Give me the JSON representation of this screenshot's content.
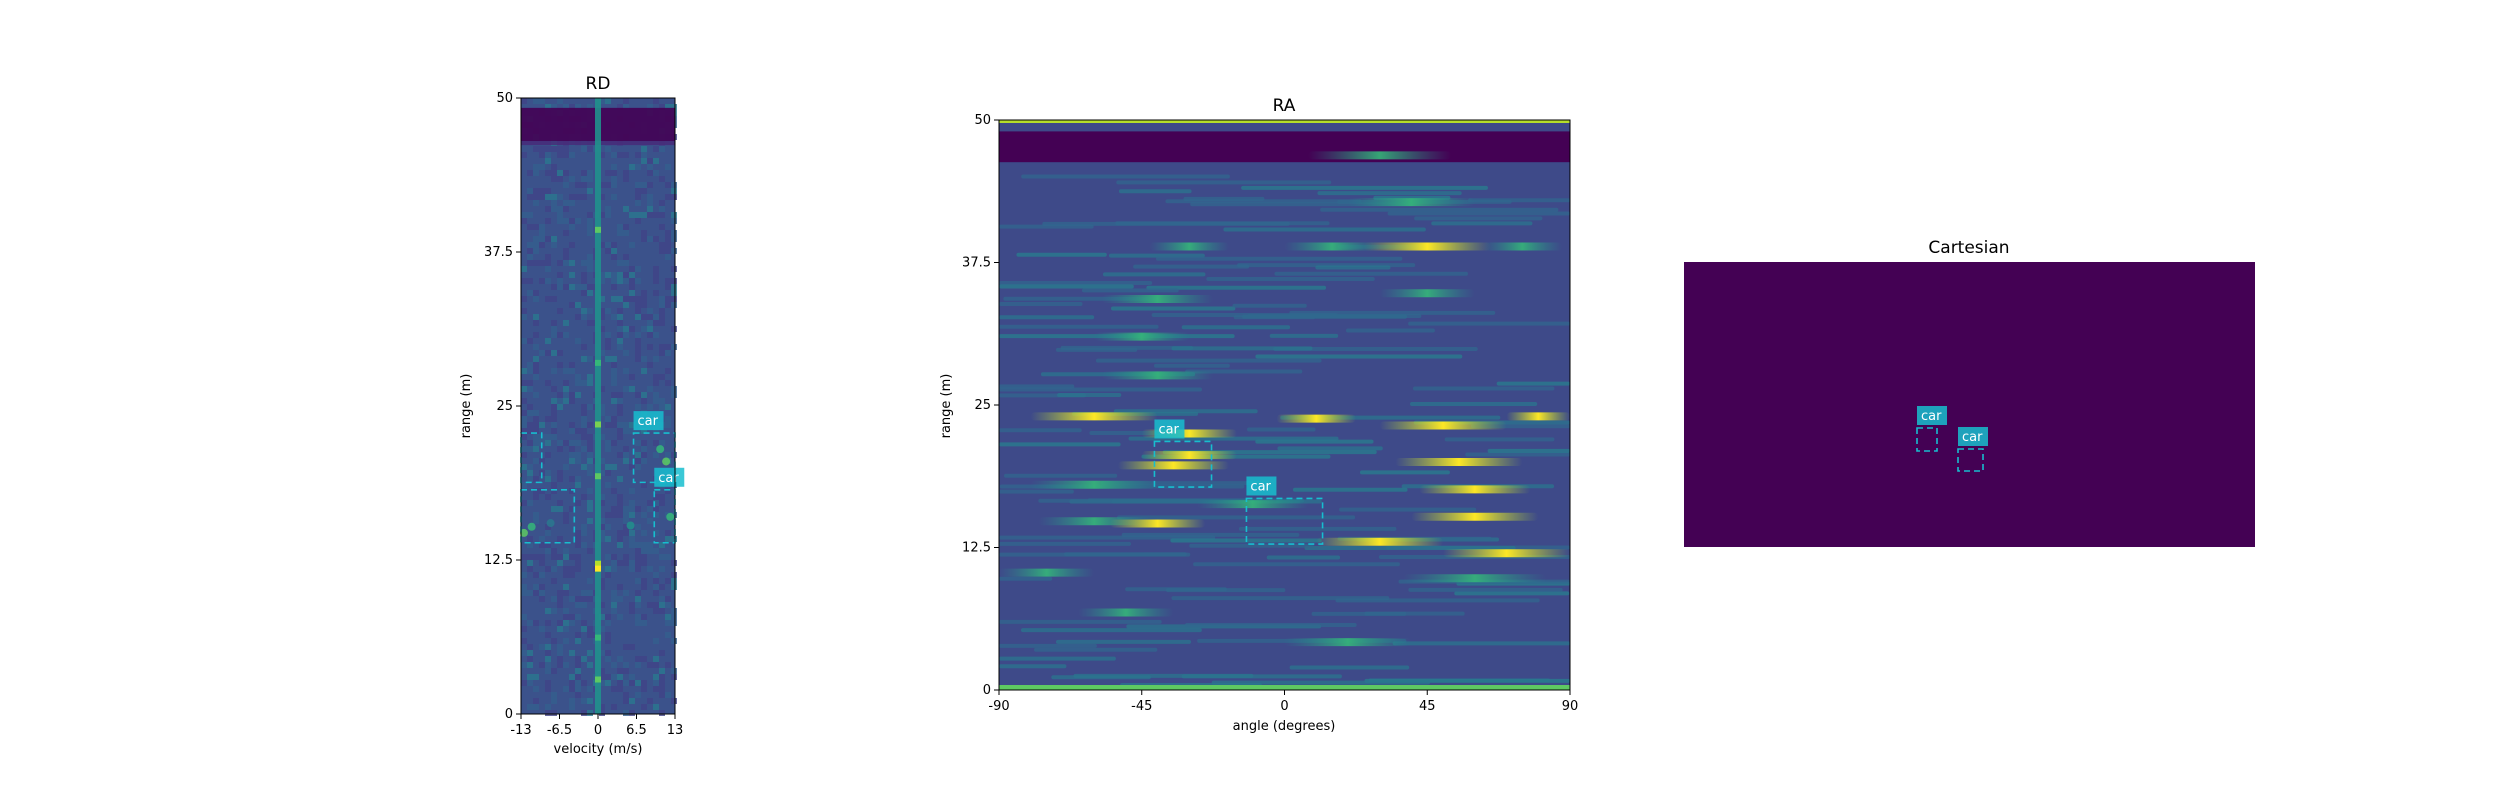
{
  "figure": {
    "colors": {
      "background": "#ffffff",
      "cmap_low": "#440154",
      "cmap_mid_low": "#3b528b",
      "cmap_mid": "#21918c",
      "cmap_high": "#5ec962",
      "cmap_peak": "#fde725",
      "box_edge": "#17becf",
      "label_bg": "#17becf"
    }
  },
  "chart_data": [
    {
      "id": "rd",
      "type": "heatmap",
      "title": "RD",
      "xlabel": "velocity (m/s)",
      "ylabel": "range (m)",
      "xlim": [
        -13,
        13
      ],
      "ylim": [
        0,
        50
      ],
      "x_ticks": [
        {
          "value": -13,
          "label": "-13"
        },
        {
          "value": -6.5,
          "label": "-6.5"
        },
        {
          "value": 0,
          "label": "0"
        },
        {
          "value": 6.5,
          "label": "6.5"
        },
        {
          "value": 13,
          "label": "13"
        }
      ],
      "y_ticks": [
        {
          "value": 0,
          "label": "0"
        },
        {
          "value": 12.5,
          "label": "12.5"
        },
        {
          "value": 25,
          "label": "25"
        },
        {
          "value": 37.5,
          "label": "37.5"
        },
        {
          "value": 50,
          "label": "50"
        }
      ],
      "boxes": [
        {
          "label": "car",
          "x": [
            6,
            13
          ],
          "y": [
            18.8,
            22.8
          ]
        },
        {
          "label": "car",
          "x": [
            9.5,
            13
          ],
          "y": [
            13.9,
            18.2
          ]
        },
        {
          "label": "",
          "x": [
            -13,
            -9.5
          ],
          "y": [
            18.8,
            22.8
          ]
        },
        {
          "label": "",
          "x": [
            -13,
            -4
          ],
          "y": [
            13.9,
            18.2
          ]
        }
      ]
    },
    {
      "id": "ra",
      "type": "heatmap",
      "title": "RA",
      "xlabel": "angle (degrees)",
      "ylabel": "range (m)",
      "xlim": [
        -90,
        90
      ],
      "ylim": [
        0,
        50
      ],
      "x_ticks": [
        {
          "value": -90,
          "label": "-90"
        },
        {
          "value": -45,
          "label": "-45"
        },
        {
          "value": 0,
          "label": "0"
        },
        {
          "value": 45,
          "label": "45"
        },
        {
          "value": 90,
          "label": "90"
        }
      ],
      "y_ticks": [
        {
          "value": 0,
          "label": "0"
        },
        {
          "value": 12.5,
          "label": "12.5"
        },
        {
          "value": 25,
          "label": "25"
        },
        {
          "value": 37.5,
          "label": "37.5"
        },
        {
          "value": 50,
          "label": "50"
        }
      ],
      "boxes": [
        {
          "label": "car",
          "x": [
            -41,
            -23
          ],
          "y": [
            17.8,
            21.8
          ]
        },
        {
          "label": "car",
          "x": [
            -12,
            12
          ],
          "y": [
            12.8,
            16.8
          ]
        }
      ]
    },
    {
      "id": "cartesian",
      "type": "heatmap",
      "title": "Cartesian",
      "xlabel": "",
      "ylabel": "",
      "boxes": [
        {
          "label": "car"
        },
        {
          "label": "car"
        }
      ]
    }
  ]
}
